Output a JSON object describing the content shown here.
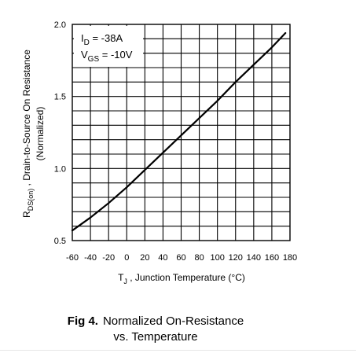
{
  "chart_data": {
    "type": "line",
    "xlabel": {
      "symbol": "T",
      "sub": "J",
      "rest": " , Junction Temperature (°C)"
    },
    "ylabel": {
      "symbol": "R",
      "sub": "DS(on)",
      "rest": " , Drain-to-Source On Resistance",
      "line2": "(Normalized)"
    },
    "xlim": [
      -60,
      180
    ],
    "ylim": [
      0.5,
      2.0
    ],
    "x_ticks": [
      "-60",
      "-40",
      "-20",
      "0",
      "20",
      "40",
      "60",
      "80",
      "100",
      "120",
      "140",
      "160",
      "180"
    ],
    "y_ticks": [
      "0.5",
      "1.0",
      "1.5",
      "2.0"
    ],
    "grid": true,
    "legend": {
      "line1": {
        "symbol": "I",
        "sub": "D",
        "rest": " = -38A"
      },
      "line2": {
        "symbol": "V",
        "sub": "GS",
        "rest": " = -10V"
      }
    },
    "series": [
      {
        "x": [
          -60,
          -40,
          -20,
          0,
          20,
          40,
          60,
          80,
          100,
          120,
          140,
          160,
          175
        ],
        "y": [
          0.57,
          0.66,
          0.76,
          0.87,
          0.99,
          1.11,
          1.23,
          1.35,
          1.47,
          1.6,
          1.72,
          1.84,
          1.94
        ]
      }
    ]
  },
  "caption": {
    "label": "Fig 4.",
    "line1": "Normalized On-Resistance",
    "line2": "vs. Temperature"
  }
}
